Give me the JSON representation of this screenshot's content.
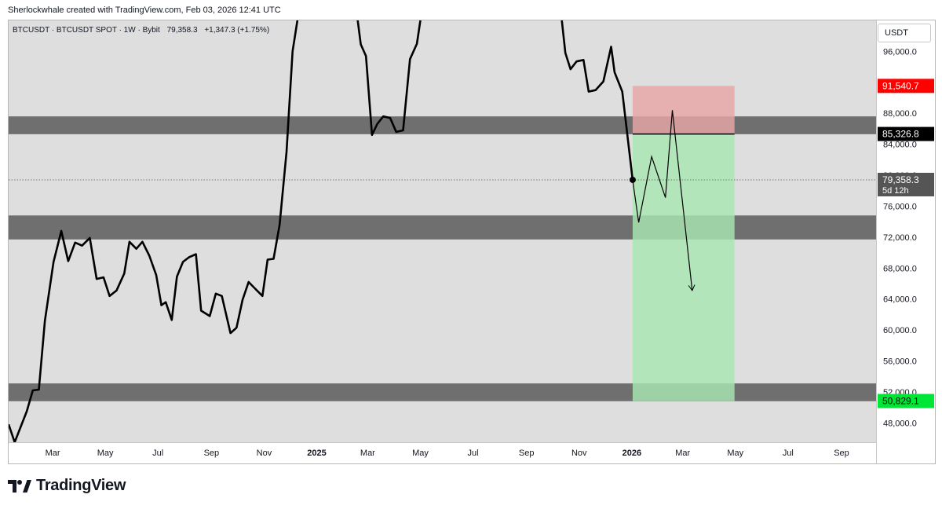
{
  "header": {
    "caption": "Sherlockwhale created with TradingView.com, Feb 03, 2026 12:41 UTC"
  },
  "legend": {
    "symbol": "BTCUSDT · BTCUSDT SPOT · 1W · Bybit",
    "price": "79,358.3",
    "change": "+1,347.3 (+1.75%)"
  },
  "currency_button": "USDT",
  "branding": {
    "name": "TradingView"
  },
  "colors": {
    "background": "#dedede",
    "zone": "#6f6f6f",
    "risk": "#e8a6a6",
    "reward": "#a9e7b3",
    "line": "#000000",
    "stop_tag": "#ff0000",
    "target_tag": "#00e636"
  },
  "chart_data": {
    "type": "line",
    "symbol": "BTCUSDT",
    "interval": "1W",
    "ylim": [
      45500,
      100000
    ],
    "y_ticks": [
      {
        "value": 48000,
        "label": "48,000.0"
      },
      {
        "value": 52000,
        "label": "52,000.0"
      },
      {
        "value": 56000,
        "label": "56,000.0"
      },
      {
        "value": 60000,
        "label": "60,000.0"
      },
      {
        "value": 64000,
        "label": "64,000.0"
      },
      {
        "value": 68000,
        "label": "68,000.0"
      },
      {
        "value": 72000,
        "label": "72,000.0"
      },
      {
        "value": 76000,
        "label": "76,000.0"
      },
      {
        "value": 80000,
        "label": "80,000.0"
      },
      {
        "value": 84000,
        "label": "84,000.0"
      },
      {
        "value": 88000,
        "label": "88,000.0"
      },
      {
        "value": 96000,
        "label": "96,000.0"
      }
    ],
    "x_ticks": [
      {
        "date": "2024-03-01",
        "label": "Mar",
        "bold": false
      },
      {
        "date": "2024-05-01",
        "label": "May",
        "bold": false
      },
      {
        "date": "2024-07-01",
        "label": "Jul",
        "bold": false
      },
      {
        "date": "2024-09-01",
        "label": "Sep",
        "bold": false
      },
      {
        "date": "2024-11-01",
        "label": "Nov",
        "bold": false
      },
      {
        "date": "2025-01-01",
        "label": "2025",
        "bold": true
      },
      {
        "date": "2025-03-01",
        "label": "Mar",
        "bold": false
      },
      {
        "date": "2025-05-01",
        "label": "May",
        "bold": false
      },
      {
        "date": "2025-07-01",
        "label": "Jul",
        "bold": false
      },
      {
        "date": "2025-09-01",
        "label": "Sep",
        "bold": false
      },
      {
        "date": "2025-11-01",
        "label": "Nov",
        "bold": false
      },
      {
        "date": "2026-01-01",
        "label": "2026",
        "bold": true
      },
      {
        "date": "2026-03-01",
        "label": "Mar",
        "bold": false
      },
      {
        "date": "2026-05-01",
        "label": "May",
        "bold": false
      },
      {
        "date": "2026-07-01",
        "label": "Jul",
        "bold": false
      },
      {
        "date": "2026-09-01",
        "label": "Sep",
        "bold": false
      }
    ],
    "xlim": [
      "2024-01-10",
      "2026-10-11"
    ],
    "series": [
      {
        "type": "close",
        "points": [
          [
            "2024-01-10",
            47800
          ],
          [
            "2024-01-17",
            45500
          ],
          [
            "2024-01-31",
            49500
          ],
          [
            "2024-02-07",
            52200
          ],
          [
            "2024-02-14",
            52300
          ],
          [
            "2024-02-21",
            61200
          ],
          [
            "2024-03-02",
            68800
          ],
          [
            "2024-03-11",
            72800
          ],
          [
            "2024-03-19",
            68900
          ],
          [
            "2024-03-27",
            71300
          ],
          [
            "2024-04-04",
            70900
          ],
          [
            "2024-04-13",
            71900
          ],
          [
            "2024-04-21",
            66600
          ],
          [
            "2024-04-29",
            66800
          ],
          [
            "2024-05-06",
            64400
          ],
          [
            "2024-05-14",
            65100
          ],
          [
            "2024-05-23",
            67300
          ],
          [
            "2024-05-29",
            71400
          ],
          [
            "2024-06-06",
            70500
          ],
          [
            "2024-06-13",
            71400
          ],
          [
            "2024-06-21",
            69600
          ],
          [
            "2024-06-29",
            67100
          ],
          [
            "2024-07-05",
            63200
          ],
          [
            "2024-07-10",
            63600
          ],
          [
            "2024-07-17",
            61300
          ],
          [
            "2024-07-23",
            66900
          ],
          [
            "2024-07-30",
            68800
          ],
          [
            "2024-08-06",
            69400
          ],
          [
            "2024-08-14",
            69800
          ],
          [
            "2024-08-20",
            62500
          ],
          [
            "2024-08-30",
            61800
          ],
          [
            "2024-09-06",
            64700
          ],
          [
            "2024-09-13",
            64400
          ],
          [
            "2024-09-23",
            59600
          ],
          [
            "2024-09-30",
            60300
          ],
          [
            "2024-10-07",
            63900
          ],
          [
            "2024-10-14",
            66200
          ],
          [
            "2024-10-21",
            65400
          ],
          [
            "2024-10-30",
            64400
          ],
          [
            "2024-11-05",
            69100
          ],
          [
            "2024-11-12",
            69200
          ],
          [
            "2024-11-19",
            73600
          ],
          [
            "2024-11-27",
            83000
          ],
          [
            "2024-12-04",
            96000
          ],
          [
            "2024-12-11",
            101000
          ],
          [
            "2025-02-14",
            103000
          ],
          [
            "2025-02-21",
            96900
          ],
          [
            "2025-02-27",
            95400
          ],
          [
            "2025-03-06",
            85200
          ],
          [
            "2025-03-12",
            86600
          ],
          [
            "2025-03-19",
            87600
          ],
          [
            "2025-03-27",
            87400
          ],
          [
            "2025-04-03",
            85600
          ],
          [
            "2025-04-11",
            85800
          ],
          [
            "2025-04-19",
            95000
          ],
          [
            "2025-04-27",
            97000
          ],
          [
            "2025-05-05",
            103000
          ],
          [
            "2025-10-09",
            103000
          ],
          [
            "2025-10-16",
            95800
          ],
          [
            "2025-10-22",
            93700
          ],
          [
            "2025-10-29",
            94700
          ],
          [
            "2025-11-06",
            94900
          ],
          [
            "2025-11-12",
            90800
          ],
          [
            "2025-11-20",
            91000
          ],
          [
            "2025-11-29",
            92100
          ],
          [
            "2025-12-08",
            96600
          ],
          [
            "2025-12-12",
            93300
          ],
          [
            "2025-12-21",
            90800
          ],
          [
            "2026-01-02",
            79400
          ]
        ]
      },
      {
        "type": "projection",
        "points": [
          [
            "2026-01-02",
            79400
          ],
          [
            "2026-01-09",
            73900
          ],
          [
            "2026-01-24",
            82400
          ],
          [
            "2026-02-09",
            77100
          ],
          [
            "2026-02-17",
            88400
          ],
          [
            "2026-03-12",
            65100
          ]
        ]
      }
    ],
    "zones": [
      {
        "low": 85300,
        "high": 87600
      },
      {
        "low": 71700,
        "high": 74800
      },
      {
        "low": 50800,
        "high": 53100
      }
    ],
    "position": {
      "start": "2026-01-02",
      "end": "2026-04-30",
      "entry": 85326.8,
      "stop": 91540.7,
      "target": 50829.1
    },
    "price_tags": {
      "stop": "91,540.7",
      "entry": "85,326.8",
      "last": "79,358.3",
      "countdown": "5d 12h",
      "target": "50,829.1"
    }
  }
}
